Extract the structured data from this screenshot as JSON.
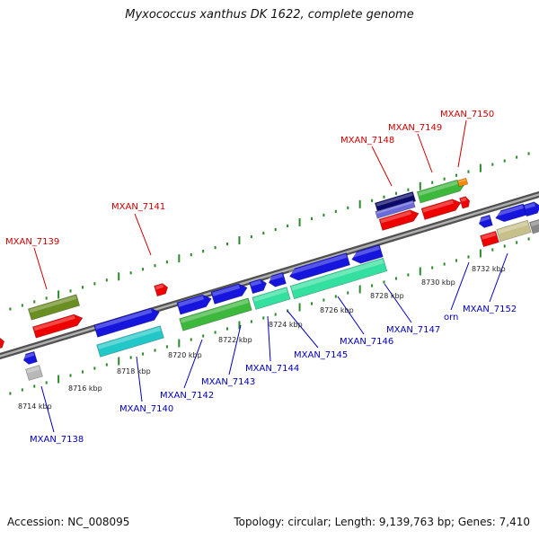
{
  "title": "Myxococcus xanthus DK 1622, complete genome",
  "footer": {
    "accession": "Accession: NC_008095",
    "summary": "Topology: circular; Length: 9,139,763 bp; Genes: 7,410"
  },
  "colors": {
    "backbone": "#808080",
    "tick": "#2a8a2a",
    "top_label": "#cc0000",
    "bottom_label": "#0000bb"
  },
  "kbp_ticks": [
    "8714 kbp",
    "8716 kbp",
    "8718 kbp",
    "8720 kbp",
    "8722 kbp",
    "8724 kbp",
    "8726 kbp",
    "8728 kbp",
    "8730 kbp",
    "8732 kbp"
  ],
  "top_labels": [
    "MXAN_7139",
    "MXAN_7141",
    "MXAN_7148",
    "MXAN_7149",
    "MXAN_7150"
  ],
  "bottom_labels": [
    "MXAN_7138",
    "MXAN_7140",
    "MXAN_7142",
    "MXAN_7143",
    "MXAN_7144",
    "MXAN_7145",
    "MXAN_7146",
    "MXAN_7147",
    "orn",
    "MXAN_7152"
  ]
}
